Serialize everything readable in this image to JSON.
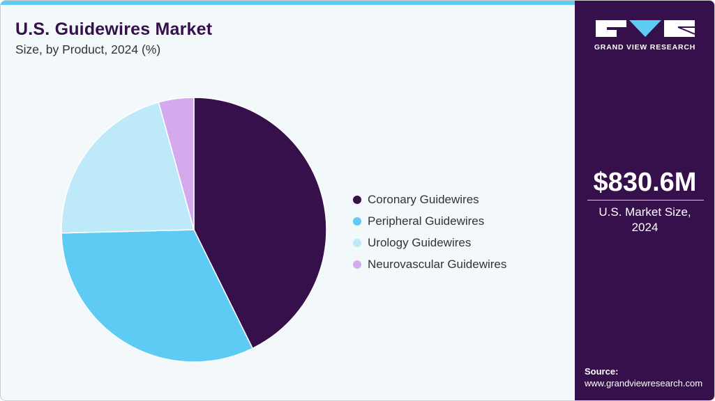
{
  "header": {
    "title": "U.S. Guidewires Market",
    "subtitle": "Size, by Product, 2024 (%)"
  },
  "colors": {
    "accent_bar": "#5ecbf5",
    "sidebar_bg": "#36104a",
    "background": "#f3f8fb"
  },
  "chart_data": {
    "type": "pie",
    "title": "U.S. Guidewires Market",
    "subtitle": "Size, by Product, 2024 (%)",
    "categories": [
      "Coronary Guidewires",
      "Peripheral Guidewires",
      "Urology Guidewires",
      "Neurovascular Guidewires"
    ],
    "values": [
      42.7,
      31.9,
      21.1,
      4.3
    ],
    "colors": [
      "#36104a",
      "#5ecbf5",
      "#bde9f9",
      "#d4a9ee"
    ],
    "start_angle": "12 o'clock, clockwise",
    "legend_position": "right"
  },
  "legend": {
    "items": [
      {
        "label": "Coronary Guidewires",
        "color": "#36104a"
      },
      {
        "label": "Peripheral Guidewires",
        "color": "#5ecbf5"
      },
      {
        "label": "Urology Guidewires",
        "color": "#bde9f9"
      },
      {
        "label": "Neurovascular Guidewires",
        "color": "#d4a9ee"
      }
    ]
  },
  "sidebar": {
    "logo_text": "GRAND VIEW RESEARCH",
    "market_size": "$830.6M",
    "market_caption_line1": "U.S. Market Size,",
    "market_caption_line2": "2024",
    "source_label": "Source:",
    "source_url": "www.grandviewresearch.com"
  }
}
